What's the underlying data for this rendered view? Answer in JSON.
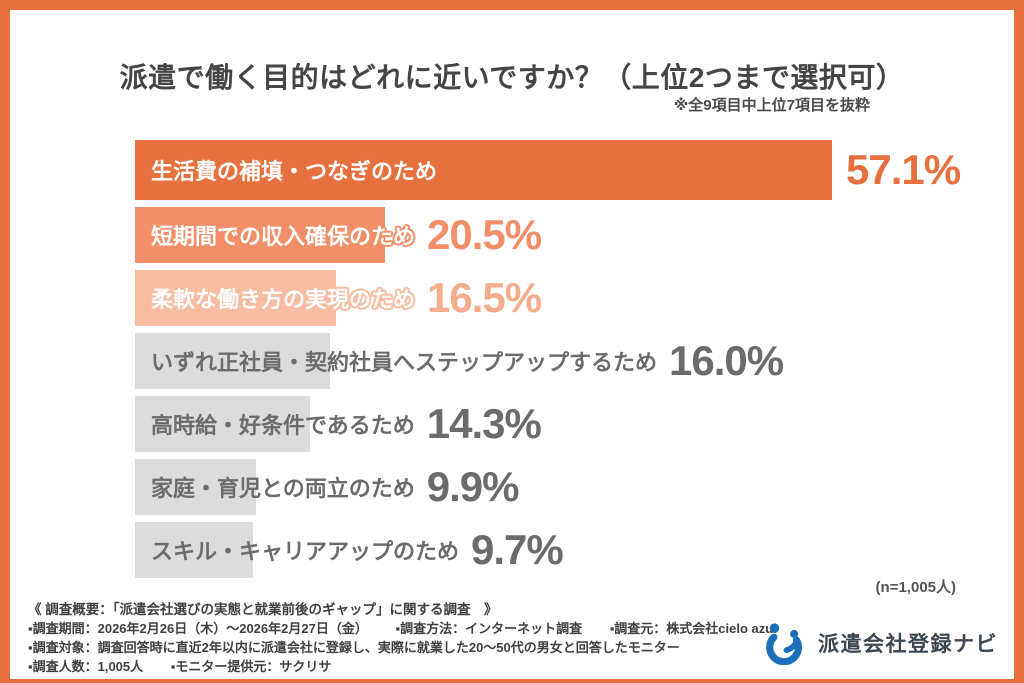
{
  "chart_data": {
    "type": "bar",
    "orientation": "horizontal",
    "title": "派遣で働く目的はどれに近いですか？（上位2つまで選択可）",
    "note": "※全9項目中上位7項目を抜粋",
    "sample_note": "(n=1,005人)",
    "xlim": [
      0,
      57.1
    ],
    "grid": false,
    "legend": false,
    "categories": [
      "生活費の補填・つなぎのため",
      "短期間での収入確保のため",
      "柔軟な働き方の実現のため",
      "いずれ正社員・契約社員へステップアップするため",
      "高時給・好条件であるため",
      "家庭・育児との両立のため",
      "スキル・キャリアアップのため"
    ],
    "values": [
      57.1,
      20.5,
      16.5,
      16.0,
      14.3,
      9.9,
      9.7
    ],
    "value_labels": [
      "57.1%",
      "20.5%",
      "16.5%",
      "16.0%",
      "14.3%",
      "9.9%",
      "9.7%"
    ],
    "bar_colors": [
      "#E7703F",
      "#F28E68",
      "#F8BCA0",
      "#DCDCDC",
      "#DCDCDC",
      "#DCDCDC",
      "#DCDCDC"
    ],
    "value_colors": [
      "#E7703F",
      "#F28E68",
      "#F5AC8A",
      "#6B6B6B",
      "#6B6B6B",
      "#6B6B6B",
      "#6B6B6B"
    ],
    "label_colors": [
      "#FFFFFF",
      "#FFFFFF",
      "#FFFFFF",
      "#6B6B6B",
      "#6B6B6B",
      "#6B6B6B",
      "#6B6B6B"
    ],
    "label_outline": [
      false,
      true,
      true,
      false,
      false,
      false,
      false
    ]
  },
  "footer": {
    "overview": "《 調査概要：「派遣会社選びの実態と就業前後のギャップ」に関する調査　》",
    "lines": [
      [
        "▪調査期間：2026年2月26日（木）〜2026年2月27日（金）",
        "▪調査方法：インターネット調査",
        "▪調査元：株式会社cielo azul"
      ],
      [
        "▪調査対象：調査回答時に直近2年以内に派遣会社に登録し、実際に就業した20〜50代の男女と回答したモニター"
      ],
      [
        "▪調査人数：1,005人",
        "▪モニター提供元：サクリサ"
      ]
    ]
  },
  "logo": {
    "name": "派遣会社登録ナビ",
    "icon_color": "#1C6FB8",
    "text_color": "#3C4653"
  },
  "colors": {
    "frame": "#E7703F",
    "background": "#FFFFFF",
    "title_text": "#454545",
    "footer_text": "#404040"
  }
}
